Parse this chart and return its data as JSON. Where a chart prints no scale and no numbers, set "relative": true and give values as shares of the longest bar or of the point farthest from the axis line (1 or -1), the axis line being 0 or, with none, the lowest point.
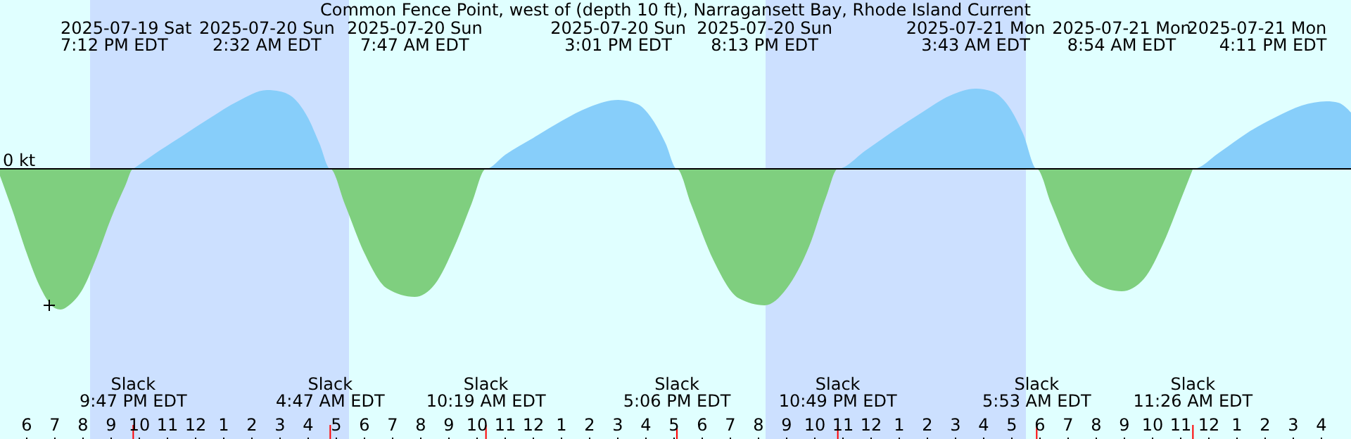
{
  "chart_data": {
    "type": "area",
    "relative": true,
    "title": "Common Fence Point, west of (depth 10 ft), Narragansett Bay, Rhode Island Current",
    "xlim": [
      "2025-07-19T17:03",
      "2025-07-21T17:03"
    ],
    "xticks": [
      {
        "value": "2025-07-19T18:00",
        "label": "6"
      },
      {
        "value": "2025-07-19T19:00",
        "label": "7"
      },
      {
        "value": "2025-07-19T20:00",
        "label": "8"
      },
      {
        "value": "2025-07-19T21:00",
        "label": "9"
      },
      {
        "value": "2025-07-19T22:00",
        "label": "10"
      },
      {
        "value": "2025-07-19T23:00",
        "label": "11"
      },
      {
        "value": "2025-07-20T00:00",
        "label": "12"
      },
      {
        "value": "2025-07-20T01:00",
        "label": "1"
      },
      {
        "value": "2025-07-20T02:00",
        "label": "2"
      },
      {
        "value": "2025-07-20T03:00",
        "label": "3"
      },
      {
        "value": "2025-07-20T04:00",
        "label": "4"
      },
      {
        "value": "2025-07-20T05:00",
        "label": "5"
      },
      {
        "value": "2025-07-20T06:00",
        "label": "6"
      },
      {
        "value": "2025-07-20T07:00",
        "label": "7"
      },
      {
        "value": "2025-07-20T08:00",
        "label": "8"
      },
      {
        "value": "2025-07-20T09:00",
        "label": "9"
      },
      {
        "value": "2025-07-20T10:00",
        "label": "10"
      },
      {
        "value": "2025-07-20T11:00",
        "label": "11"
      },
      {
        "value": "2025-07-20T12:00",
        "label": "12"
      },
      {
        "value": "2025-07-20T13:00",
        "label": "1"
      },
      {
        "value": "2025-07-20T14:00",
        "label": "2"
      },
      {
        "value": "2025-07-20T15:00",
        "label": "3"
      },
      {
        "value": "2025-07-20T16:00",
        "label": "4"
      },
      {
        "value": "2025-07-20T17:00",
        "label": "5"
      },
      {
        "value": "2025-07-20T18:00",
        "label": "6"
      },
      {
        "value": "2025-07-20T19:00",
        "label": "7"
      },
      {
        "value": "2025-07-20T20:00",
        "label": "8"
      },
      {
        "value": "2025-07-20T21:00",
        "label": "9"
      },
      {
        "value": "2025-07-20T22:00",
        "label": "10"
      },
      {
        "value": "2025-07-20T23:00",
        "label": "11"
      },
      {
        "value": "2025-07-21T00:00",
        "label": "12"
      },
      {
        "value": "2025-07-21T01:00",
        "label": "1"
      },
      {
        "value": "2025-07-21T02:00",
        "label": "2"
      },
      {
        "value": "2025-07-21T03:00",
        "label": "3"
      },
      {
        "value": "2025-07-21T04:00",
        "label": "4"
      },
      {
        "value": "2025-07-21T05:00",
        "label": "5"
      },
      {
        "value": "2025-07-21T06:00",
        "label": "6"
      },
      {
        "value": "2025-07-21T07:00",
        "label": "7"
      },
      {
        "value": "2025-07-21T08:00",
        "label": "8"
      },
      {
        "value": "2025-07-21T09:00",
        "label": "9"
      },
      {
        "value": "2025-07-21T10:00",
        "label": "10"
      },
      {
        "value": "2025-07-21T11:00",
        "label": "11"
      },
      {
        "value": "2025-07-21T12:00",
        "label": "12"
      },
      {
        "value": "2025-07-21T13:00",
        "label": "1"
      },
      {
        "value": "2025-07-21T14:00",
        "label": "2"
      },
      {
        "value": "2025-07-21T15:00",
        "label": "3"
      },
      {
        "value": "2025-07-21T16:00",
        "label": "4"
      }
    ],
    "series": [
      {
        "color": "#7fcf7f",
        "x": [
          "2025-07-19T17:03",
          "2025-07-19T17:30",
          "2025-07-19T18:00",
          "2025-07-19T18:30",
          "2025-07-19T19:00",
          "2025-07-19T19:12",
          "2025-07-19T19:30",
          "2025-07-19T20:00",
          "2025-07-19T20:30",
          "2025-07-19T21:00",
          "2025-07-19T21:30",
          "2025-07-19T21:47",
          "2025-07-20T04:47",
          "2025-07-20T05:18",
          "2025-07-20T06:00",
          "2025-07-20T06:48",
          "2025-07-20T07:47",
          "2025-07-20T08:30",
          "2025-07-20T09:12",
          "2025-07-20T09:48",
          "2025-07-20T10:19",
          "2025-07-20T17:06",
          "2025-07-20T17:36",
          "2025-07-20T18:24",
          "2025-07-20T19:18",
          "2025-07-20T20:13",
          "2025-07-20T21:00",
          "2025-07-20T21:48",
          "2025-07-20T22:24",
          "2025-07-20T22:49",
          "2025-07-21T05:53",
          "2025-07-21T06:24",
          "2025-07-21T07:12",
          "2025-07-21T08:00",
          "2025-07-21T08:54",
          "2025-07-21T09:42",
          "2025-07-21T10:24",
          "2025-07-21T11:00",
          "2025-07-21T11:26"
        ],
        "values": [
          -0.05,
          -0.3,
          -0.6,
          -0.85,
          -0.99,
          -1,
          -0.97,
          -0.85,
          -0.62,
          -0.35,
          -0.12,
          0,
          0,
          -0.25,
          -0.6,
          -0.85,
          -0.91,
          -0.82,
          -0.55,
          -0.25,
          0,
          0,
          -0.25,
          -0.65,
          -0.92,
          -0.97,
          -0.85,
          -0.55,
          -0.2,
          0,
          0,
          -0.25,
          -0.62,
          -0.82,
          -0.87,
          -0.78,
          -0.52,
          -0.22,
          0
        ]
      },
      {
        "color": "#87cefa",
        "x": [
          "2025-07-19T21:47",
          "2025-07-19T22:30",
          "2025-07-19T23:30",
          "2025-07-20T00:30",
          "2025-07-20T01:30",
          "2025-07-20T02:32",
          "2025-07-20T03:00",
          "2025-07-20T03:30",
          "2025-07-20T04:00",
          "2025-07-20T04:24",
          "2025-07-20T04:47",
          "2025-07-20T10:19",
          "2025-07-20T11:00",
          "2025-07-20T12:00",
          "2025-07-20T13:00",
          "2025-07-20T14:00",
          "2025-07-20T15:01",
          "2025-07-20T15:42",
          "2025-07-20T16:18",
          "2025-07-20T16:42",
          "2025-07-20T17:06",
          "2025-07-20T22:49",
          "2025-07-20T23:48",
          "2025-07-21T00:48",
          "2025-07-21T01:48",
          "2025-07-21T02:48",
          "2025-07-21T03:43",
          "2025-07-21T04:18",
          "2025-07-21T04:54",
          "2025-07-21T05:24",
          "2025-07-21T05:53",
          "2025-07-21T11:26",
          "2025-07-21T12:24",
          "2025-07-21T13:24",
          "2025-07-21T14:24",
          "2025-07-21T15:18",
          "2025-07-21T16:11",
          "2025-07-21T16:36",
          "2025-07-21T17:03"
        ],
        "values": [
          0,
          0.1,
          0.23,
          0.36,
          0.48,
          0.56,
          0.55,
          0.5,
          0.36,
          0.18,
          0,
          0,
          0.1,
          0.22,
          0.34,
          0.44,
          0.49,
          0.46,
          0.33,
          0.18,
          0,
          0,
          0.13,
          0.27,
          0.4,
          0.52,
          0.57,
          0.55,
          0.44,
          0.25,
          0,
          0,
          0.12,
          0.26,
          0.37,
          0.45,
          0.48,
          0.47,
          0.4
        ]
      },
      {
        "type": "scatter",
        "marker": "cross",
        "color": "#000000",
        "x": [
          "2025-07-19T18:48"
        ],
        "values": [
          -0.97
        ]
      }
    ],
    "ref_lines": [
      {
        "axis": "y",
        "value": 0,
        "label": "0 kt",
        "color": "#000000"
      }
    ],
    "bands": [
      {
        "axis": "x",
        "from": "2025-07-19T20:15",
        "to": "2025-07-20T05:27",
        "color": "#cce0ff"
      },
      {
        "axis": "x",
        "from": "2025-07-20T20:15",
        "to": "2025-07-21T05:30",
        "color": "#cce0ff"
      }
    ],
    "annotations": [
      "2025-07-19 Sat\n7:12 PM EDT",
      "2025-07-20 Sun\n2:32 AM EDT",
      "2025-07-20 Sun\n7:47 AM EDT",
      "2025-07-20 Sun\n3:01 PM EDT",
      "2025-07-20 Sun\n8:13 PM EDT",
      "2025-07-21 Mon\n3:43 AM EDT",
      "2025-07-21 Mon\n8:54 AM EDT",
      "2025-07-21 Mon\n4:11 PM EDT",
      {
        "text": "Slack\n9:47 PM EDT",
        "x": "2025-07-19T21:47"
      },
      {
        "text": "Slack\n4:47 AM EDT",
        "x": "2025-07-20T04:47"
      },
      {
        "text": "Slack\n10:19 AM EDT",
        "x": "2025-07-20T10:19"
      },
      {
        "text": "Slack\n5:06 PM EDT",
        "x": "2025-07-20T17:06"
      },
      {
        "text": "Slack\n10:49 PM EDT",
        "x": "2025-07-20T22:49"
      },
      {
        "text": "Slack\n5:53 AM EDT",
        "x": "2025-07-21T05:53"
      },
      {
        "text": "Slack\n11:26 AM EDT",
        "x": "2025-07-21T11:26"
      }
    ]
  }
}
